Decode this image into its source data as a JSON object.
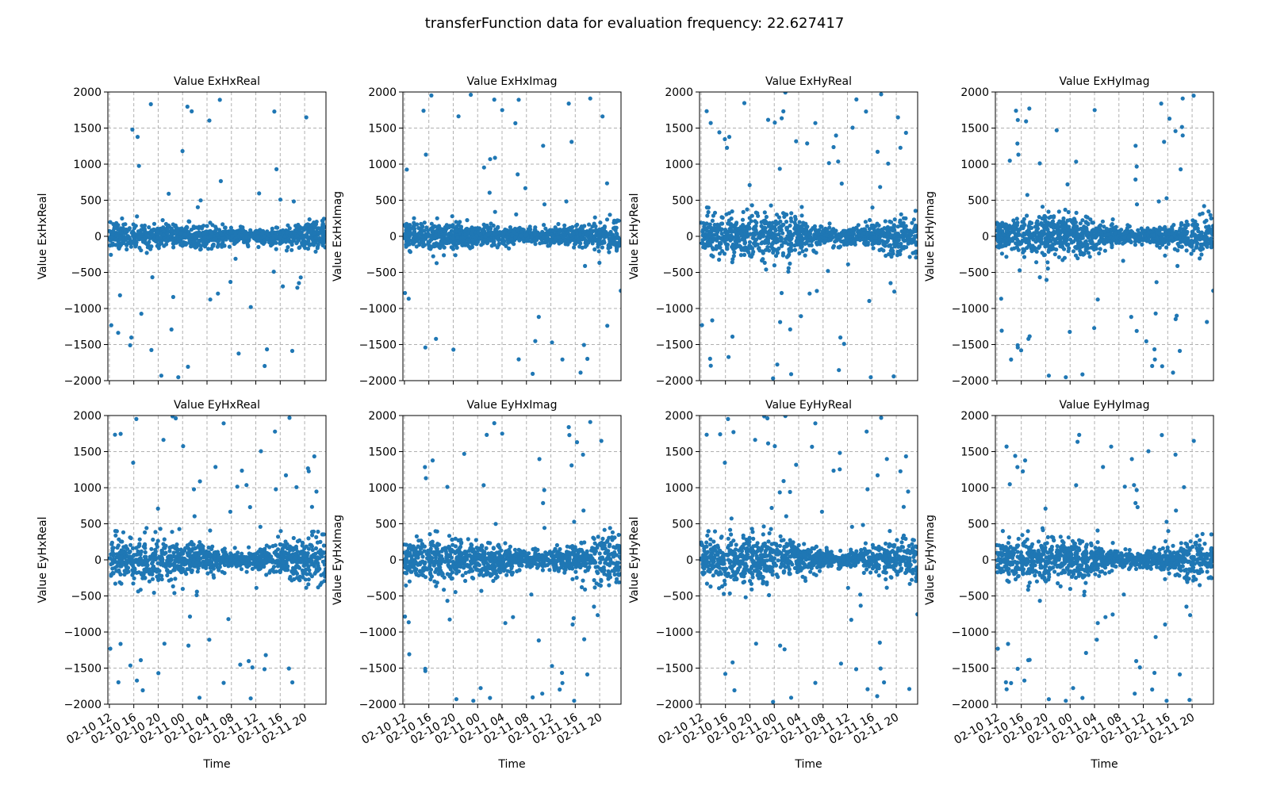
{
  "figure": {
    "suptitle": "transferFunction data for evaluation frequency: 22.627417"
  },
  "chart_data": [
    {
      "type": "scatter",
      "title": "Value ExHxReal",
      "xlabel": "",
      "ylabel": "Value ExHxReal",
      "ylim": [
        -2000,
        2000
      ],
      "yticks": [
        -2000,
        -1500,
        -1000,
        -500,
        0,
        500,
        1000,
        1500,
        2000
      ],
      "x_range": [
        "2010-02-10 11:45",
        "2010-02-11 23:30"
      ],
      "xticks": [],
      "xtick_labels": [],
      "grid": true,
      "color": "#1f77b4",
      "profile": {
        "start": "2010-02-10 12:00",
        "end": "2010-02-11 23:30",
        "spread_by_hour": [
          180,
          170,
          160,
          150,
          150,
          150,
          140,
          130,
          110,
          90,
          90,
          100,
          120,
          140,
          170,
          200
        ],
        "outlier_rate": 0.04
      }
    },
    {
      "type": "scatter",
      "title": "Value ExHxImag",
      "xlabel": "",
      "ylabel": "Value ExHxImag",
      "ylim": [
        -2000,
        2000
      ],
      "yticks": [
        -2000,
        -1500,
        -1000,
        -500,
        0,
        500,
        1000,
        1500,
        2000
      ],
      "x_range": [
        "2010-02-10 11:45",
        "2010-02-11 23:30"
      ],
      "xticks": [],
      "xtick_labels": [],
      "grid": true,
      "color": "#1f77b4",
      "profile": {
        "start": "2010-02-10 12:00",
        "end": "2010-02-11 23:30",
        "spread_by_hour": [
          170,
          180,
          190,
          170,
          150,
          140,
          130,
          110,
          90,
          80,
          100,
          120,
          140,
          160,
          180,
          200
        ],
        "outlier_rate": 0.04
      }
    },
    {
      "type": "scatter",
      "title": "Value ExHyReal",
      "xlabel": "",
      "ylabel": "Value ExHyReal",
      "ylim": [
        -2000,
        2000
      ],
      "yticks": [
        -2000,
        -1500,
        -1000,
        -500,
        0,
        500,
        1000,
        1500,
        2000
      ],
      "x_range": [
        "2010-02-10 11:45",
        "2010-02-11 23:30"
      ],
      "xticks": [],
      "xtick_labels": [],
      "grid": true,
      "color": "#1f77b4",
      "profile": {
        "start": "2010-02-10 12:00",
        "end": "2010-02-11 23:30",
        "spread_by_hour": [
          220,
          240,
          260,
          280,
          300,
          300,
          260,
          200,
          150,
          120,
          100,
          110,
          140,
          180,
          220,
          240
        ],
        "outlier_rate": 0.06
      }
    },
    {
      "type": "scatter",
      "title": "Value ExHyImag",
      "xlabel": "",
      "ylabel": "Value ExHyImag",
      "ylim": [
        -2000,
        2000
      ],
      "yticks": [
        -2000,
        -1500,
        -1000,
        -500,
        0,
        500,
        1000,
        1500,
        2000
      ],
      "x_range": [
        "2010-02-10 11:45",
        "2010-02-11 23:30"
      ],
      "xticks": [],
      "xtick_labels": [],
      "grid": true,
      "color": "#1f77b4",
      "profile": {
        "start": "2010-02-10 12:00",
        "end": "2010-02-11 23:30",
        "spread_by_hour": [
          200,
          230,
          260,
          290,
          300,
          280,
          240,
          180,
          130,
          100,
          90,
          110,
          140,
          180,
          210,
          230
        ],
        "outlier_rate": 0.06
      }
    },
    {
      "type": "scatter",
      "title": "Value EyHxReal",
      "xlabel": "Time",
      "ylabel": "Value EyHxReal",
      "ylim": [
        -2000,
        2000
      ],
      "yticks": [
        -2000,
        -1500,
        -1000,
        -500,
        0,
        500,
        1000,
        1500,
        2000
      ],
      "x_range": [
        "2010-02-10 11:45",
        "2010-02-11 23:30"
      ],
      "xticks": [
        "2010-02-10 12:00",
        "2010-02-10 16:00",
        "2010-02-10 20:00",
        "2010-02-11 00:00",
        "2010-02-11 04:00",
        "2010-02-11 08:00",
        "2010-02-11 12:00",
        "2010-02-11 16:00",
        "2010-02-11 20:00"
      ],
      "xtick_labels": [
        "02-10 12",
        "02-10 16",
        "02-10 20",
        "02-11 00",
        "02-11 04",
        "02-11 08",
        "02-11 12",
        "02-11 16",
        "02-11 20"
      ],
      "grid": true,
      "color": "#1f77b4",
      "profile": {
        "start": "2010-02-10 12:00",
        "end": "2010-02-11 23:30",
        "spread_by_hour": [
          260,
          280,
          300,
          290,
          260,
          230,
          200,
          160,
          120,
          100,
          110,
          140,
          200,
          260,
          300,
          320
        ],
        "outlier_rate": 0.05
      }
    },
    {
      "type": "scatter",
      "title": "Value EyHxImag",
      "xlabel": "Time",
      "ylabel": "Value EyHxImag",
      "ylim": [
        -2000,
        2000
      ],
      "yticks": [
        -2000,
        -1500,
        -1000,
        -500,
        0,
        500,
        1000,
        1500,
        2000
      ],
      "x_range": [
        "2010-02-10 11:45",
        "2010-02-11 23:30"
      ],
      "xticks": [
        "2010-02-10 12:00",
        "2010-02-10 16:00",
        "2010-02-10 20:00",
        "2010-02-11 00:00",
        "2010-02-11 04:00",
        "2010-02-11 08:00",
        "2010-02-11 12:00",
        "2010-02-11 16:00",
        "2010-02-11 20:00"
      ],
      "xtick_labels": [
        "02-10 12",
        "02-10 16",
        "02-10 20",
        "02-11 00",
        "02-11 04",
        "02-11 08",
        "02-11 12",
        "02-11 16",
        "02-11 20"
      ],
      "grid": true,
      "color": "#1f77b4",
      "profile": {
        "start": "2010-02-10 12:00",
        "end": "2010-02-11 23:30",
        "spread_by_hour": [
          250,
          280,
          300,
          290,
          260,
          230,
          200,
          160,
          120,
          100,
          110,
          150,
          210,
          270,
          300,
          320
        ],
        "outlier_rate": 0.05
      }
    },
    {
      "type": "scatter",
      "title": "Value EyHyReal",
      "xlabel": "Time",
      "ylabel": "Value EyHyReal",
      "ylim": [
        -2000,
        2000
      ],
      "yticks": [
        -2000,
        -1500,
        -1000,
        -500,
        0,
        500,
        1000,
        1500,
        2000
      ],
      "x_range": [
        "2010-02-10 11:45",
        "2010-02-11 23:30"
      ],
      "xticks": [
        "2010-02-10 12:00",
        "2010-02-10 16:00",
        "2010-02-10 20:00",
        "2010-02-11 00:00",
        "2010-02-11 04:00",
        "2010-02-11 08:00",
        "2010-02-11 12:00",
        "2010-02-11 16:00",
        "2010-02-11 20:00"
      ],
      "xtick_labels": [
        "02-10 12",
        "02-10 16",
        "02-10 20",
        "02-11 00",
        "02-11 04",
        "02-11 08",
        "02-11 12",
        "02-11 16",
        "02-11 20"
      ],
      "grid": true,
      "color": "#1f77b4",
      "profile": {
        "start": "2010-02-10 12:00",
        "end": "2010-02-11 23:30",
        "spread_by_hour": [
          260,
          290,
          320,
          330,
          310,
          280,
          240,
          190,
          140,
          100,
          80,
          110,
          160,
          220,
          260,
          280
        ],
        "outlier_rate": 0.06
      }
    },
    {
      "type": "scatter",
      "title": "Value EyHyImag",
      "xlabel": "Time",
      "ylabel": "Value EyHyImag",
      "ylim": [
        -2000,
        2000
      ],
      "yticks": [
        -2000,
        -1500,
        -1000,
        -500,
        0,
        500,
        1000,
        1500,
        2000
      ],
      "x_range": [
        "2010-02-10 11:45",
        "2010-02-11 23:30"
      ],
      "xticks": [
        "2010-02-10 12:00",
        "2010-02-10 16:00",
        "2010-02-10 20:00",
        "2010-02-11 00:00",
        "2010-02-11 04:00",
        "2010-02-11 08:00",
        "2010-02-11 12:00",
        "2010-02-11 16:00",
        "2010-02-11 20:00"
      ],
      "xtick_labels": [
        "02-10 12",
        "02-10 16",
        "02-10 20",
        "02-11 00",
        "02-11 04",
        "02-11 08",
        "02-11 12",
        "02-11 16",
        "02-11 20"
      ],
      "grid": true,
      "color": "#1f77b4",
      "profile": {
        "start": "2010-02-10 12:00",
        "end": "2010-02-11 23:30",
        "spread_by_hour": [
          240,
          270,
          300,
          310,
          290,
          260,
          220,
          170,
          130,
          100,
          90,
          120,
          160,
          200,
          240,
          260
        ],
        "outlier_rate": 0.06
      }
    }
  ]
}
